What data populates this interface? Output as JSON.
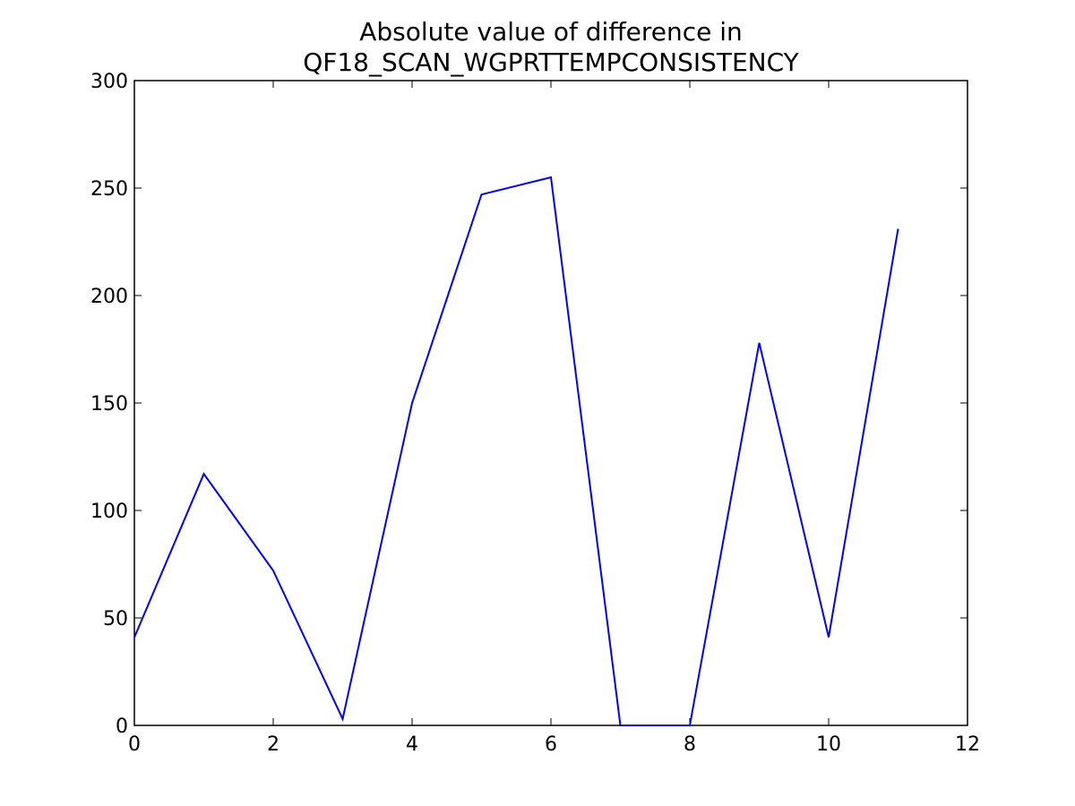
{
  "chart_data": {
    "type": "line",
    "title_lines": [
      "Absolute value of difference in",
      "QF18_SCAN_WGPRTTEMPCONSISTENCY"
    ],
    "xlabel": "",
    "ylabel": "",
    "xlim": [
      0,
      12
    ],
    "ylim": [
      0,
      300
    ],
    "xticks": [
      0,
      2,
      4,
      6,
      8,
      10,
      12
    ],
    "yticks": [
      0,
      50,
      100,
      150,
      200,
      250,
      300
    ],
    "grid": false,
    "series": [
      {
        "color": "#0000ff",
        "x": [
          0,
          1,
          2,
          3,
          4,
          5,
          6,
          7,
          8,
          9,
          10,
          11
        ],
        "y": [
          41,
          117,
          72,
          3,
          150,
          247,
          255,
          0,
          0,
          178,
          41,
          231
        ]
      }
    ]
  }
}
